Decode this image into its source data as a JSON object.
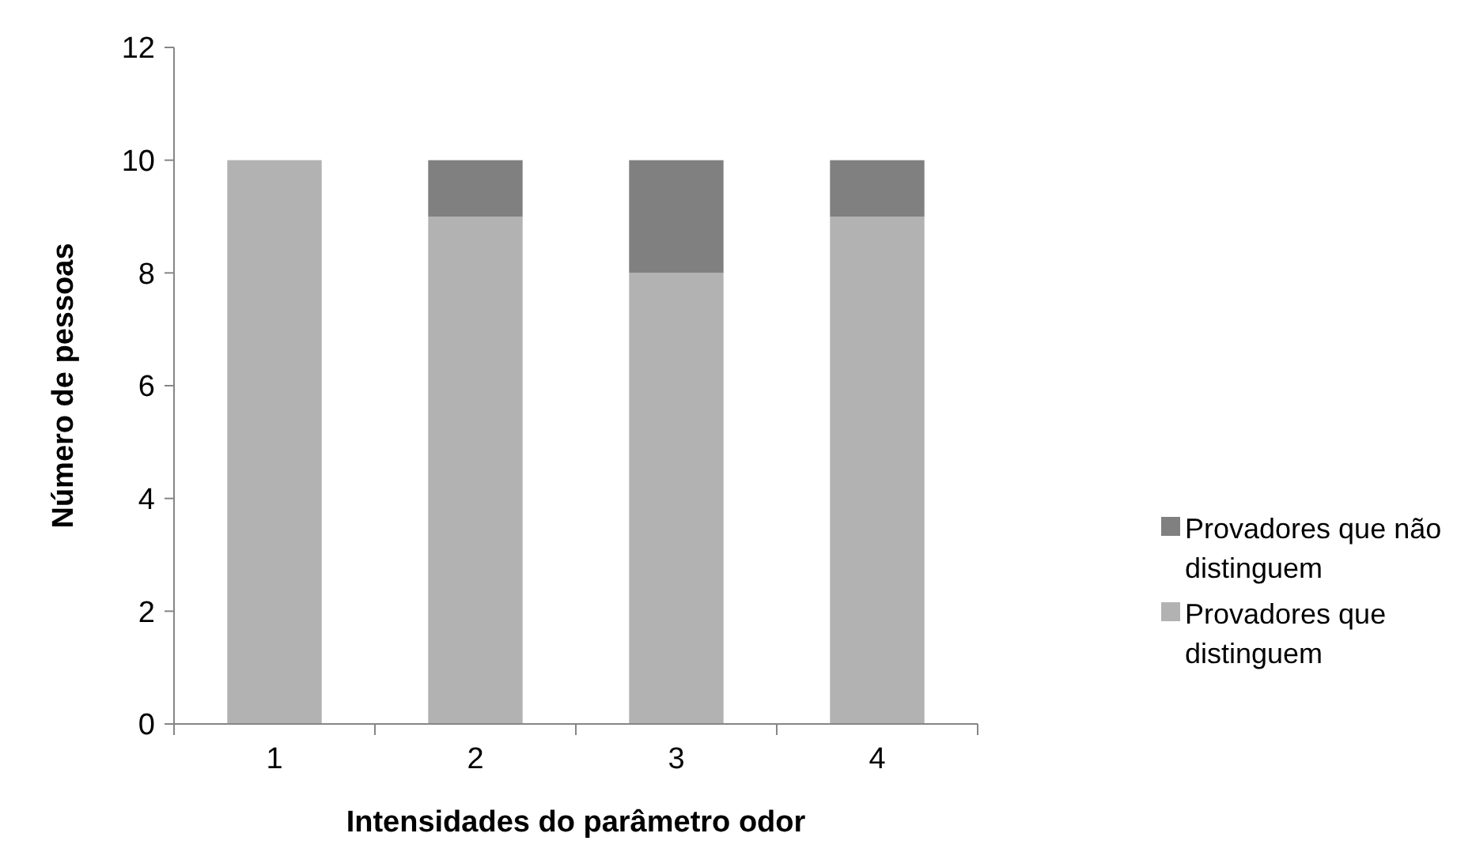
{
  "chart_data": {
    "type": "bar",
    "stacked": true,
    "xlabel": "Intensidades do parâmetro odor",
    "ylabel": "Número de pessoas",
    "categories": [
      "1",
      "2",
      "3",
      "4"
    ],
    "series": [
      {
        "name": "Provadores que distinguem",
        "color": "#b2b2b2",
        "values": [
          10,
          9,
          8,
          9
        ]
      },
      {
        "name": "Provadores que não distinguem",
        "color": "#808080",
        "values": [
          0,
          1,
          2,
          1
        ]
      }
    ],
    "ylim": [
      0,
      12
    ],
    "yticks": [
      0,
      2,
      4,
      6,
      8,
      10,
      12
    ],
    "grid": false,
    "legend": "right"
  }
}
